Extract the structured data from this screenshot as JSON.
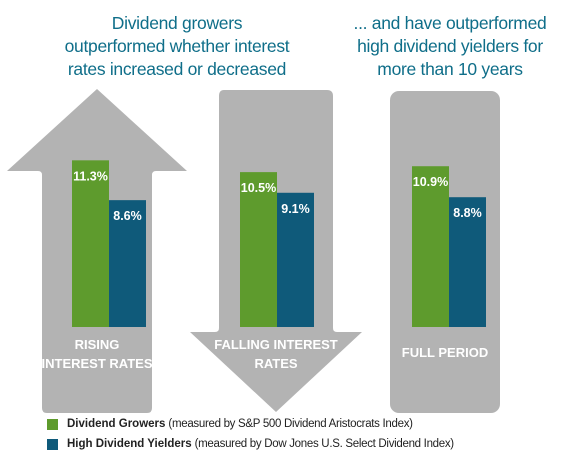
{
  "headlines": {
    "left": [
      "Dividend growers",
      "outperformed whether interest",
      "rates increased or decreased"
    ],
    "right": [
      "... and have outperformed",
      "high dividend yielders for",
      "more than 10 years"
    ]
  },
  "colors": {
    "growers": "#5e9b2d",
    "yielders": "#0f5a7a",
    "shape": "#b3b3b3",
    "bar_label": "#ffffff",
    "panel_label": "#ffffff",
    "headline": "#0f6e89"
  },
  "legend": [
    {
      "name": "Dividend Growers",
      "note": "(measured by S&P 500 Dividend Aristocrats Index)"
    },
    {
      "name": "High Dividend Yielders",
      "note": "(measured by Dow Jones U.S. Select Dividend Index)"
    }
  ],
  "chart_data": {
    "type": "bar",
    "categories": [
      "RISING INTEREST RATES",
      "FALLING INTEREST RATES",
      "FULL PERIOD"
    ],
    "category_label_lines": [
      [
        "RISING",
        "INTEREST RATES"
      ],
      [
        "FALLING INTEREST",
        "RATES"
      ],
      [
        "FULL PERIOD"
      ]
    ],
    "panel_shapes": [
      "arrow-up",
      "arrow-down",
      "rounded-rect"
    ],
    "series": [
      {
        "name": "Dividend Growers",
        "values": [
          11.3,
          10.5,
          10.9
        ],
        "labels": [
          "11.3%",
          "10.5%",
          "10.9%"
        ]
      },
      {
        "name": "High Dividend Yielders",
        "values": [
          8.6,
          9.1,
          8.8
        ],
        "labels": [
          "8.6%",
          "9.1%",
          "8.8%"
        ]
      }
    ]
  }
}
